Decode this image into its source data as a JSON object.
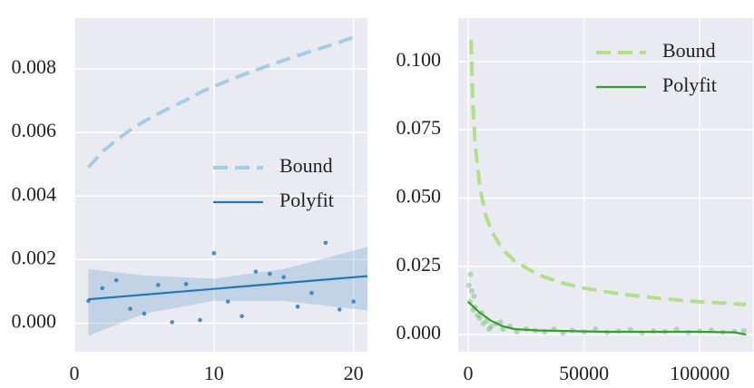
{
  "chart_data": [
    {
      "type": "line",
      "legend": "center right",
      "xlim": [
        0,
        21
      ],
      "ylim": [
        -0.0009,
        0.0096
      ],
      "xticks": [
        0,
        10,
        20
      ],
      "yticks": [
        {
          "value": 0,
          "label": "0.000"
        },
        {
          "value": 0.002,
          "label": "0.002"
        },
        {
          "value": 0.004,
          "label": "0.004"
        },
        {
          "value": 0.006,
          "label": "0.006"
        },
        {
          "value": 0.008,
          "label": "0.008"
        }
      ],
      "grid": true,
      "band": {
        "color": "#1f78b4",
        "x": [
          1,
          5,
          10,
          15,
          21
        ],
        "lower": [
          -0.0004,
          0.0003,
          0.0007,
          0.0007,
          0.0004
        ],
        "upper": [
          0.0017,
          0.0015,
          0.0014,
          0.0017,
          0.0024
        ]
      },
      "points": {
        "color": "#1f78b4",
        "x": [
          1,
          2,
          3,
          4,
          5,
          6,
          7,
          8,
          9,
          10,
          11,
          12,
          13,
          14,
          15,
          16,
          17,
          18,
          19,
          20
        ],
        "y": [
          0.0007,
          0.0011,
          0.00135,
          0.00045,
          0.0003,
          0.0012,
          3e-05,
          0.00123,
          0.0001,
          0.0022,
          0.00068,
          0.00022,
          0.00162,
          0.00155,
          0.00145,
          0.00052,
          0.00095,
          0.00253,
          0.00043,
          0.00068
        ]
      },
      "series": [
        {
          "name": "Bound",
          "color": "#a6cee3",
          "dashed": true,
          "x": [
            1,
            2,
            3,
            4,
            5,
            6,
            7,
            8,
            9,
            10,
            11,
            12,
            13,
            14,
            15,
            16,
            17,
            18,
            19,
            20
          ],
          "values": [
            0.0049,
            0.00539,
            0.00576,
            0.00608,
            0.00635,
            0.00659,
            0.00681,
            0.00702,
            0.00726,
            0.00745,
            0.00763,
            0.0078,
            0.00796,
            0.00812,
            0.00827,
            0.00842,
            0.00856,
            0.0087,
            0.00884,
            0.009
          ]
        },
        {
          "name": "Polyfit",
          "color": "#1f78b4",
          "dashed": false,
          "x": [
            1,
            21
          ],
          "values": [
            0.00075,
            0.00148
          ]
        }
      ]
    },
    {
      "type": "line",
      "legend": "upper right",
      "xlim": [
        -4300,
        123000
      ],
      "ylim": [
        -0.0063,
        0.1159
      ],
      "xticks": [
        0,
        50000,
        100000
      ],
      "yticks": [
        {
          "value": 0,
          "label": "0.000"
        },
        {
          "value": 0.025,
          "label": "0.025"
        },
        {
          "value": 0.05,
          "label": "0.050"
        },
        {
          "value": 0.075,
          "label": "0.075"
        },
        {
          "value": 0.1,
          "label": "0.100"
        }
      ],
      "grid": true,
      "points": {
        "color": "#33a02c",
        "x": [
          300,
          800,
          1500,
          2200,
          3000,
          4000,
          5000,
          6500,
          8000,
          10000,
          12000,
          15000,
          18000,
          21000,
          25000,
          29000,
          33000,
          37000,
          41000,
          45000,
          50000,
          55000,
          60000,
          65000,
          70000,
          75000,
          80000,
          85000,
          90000,
          95000,
          100000,
          105000,
          110000,
          115000,
          119000,
          1000,
          2500,
          6000,
          9000,
          14000
        ],
        "y": [
          0.018,
          0.012,
          0.016,
          0.009,
          0.01,
          0.007,
          0.006,
          0.004,
          0.005,
          0.003,
          0.004,
          0.002,
          0.003,
          0.001,
          0.002,
          0.0015,
          0.001,
          0.002,
          0.0005,
          0.0015,
          0.001,
          0.002,
          0.0008,
          0.0012,
          0.0018,
          0.0006,
          0.0013,
          0.001,
          0.0019,
          0.0007,
          0.0012,
          0.0016,
          0.0008,
          0.0011,
          0.0014,
          0.022,
          0.014,
          0.008,
          0.002,
          0.0045
        ]
      },
      "series": [
        {
          "name": "Bound",
          "color": "#b2df8a",
          "dashed": true,
          "x": [
            1250,
            2000,
            3000,
            5000,
            7500,
            10000,
            15000,
            20000,
            30000,
            40000,
            50000,
            60000,
            70000,
            80000,
            90000,
            100000,
            110000,
            120000
          ],
          "values": [
            0.108,
            0.085,
            0.07,
            0.054,
            0.044,
            0.038,
            0.031,
            0.027,
            0.022,
            0.019,
            0.017,
            0.0156,
            0.0144,
            0.0135,
            0.0127,
            0.012,
            0.0115,
            0.011
          ]
        },
        {
          "name": "Polyfit",
          "color": "#33a02c",
          "dashed": false,
          "x": [
            0,
            5000,
            10000,
            15000,
            20000,
            30000,
            60000,
            100000,
            115000,
            120000
          ],
          "values": [
            0.012,
            0.008,
            0.005,
            0.003,
            0.002,
            0.0015,
            0.001,
            0.001,
            0.0008,
            0.0
          ]
        }
      ]
    }
  ]
}
